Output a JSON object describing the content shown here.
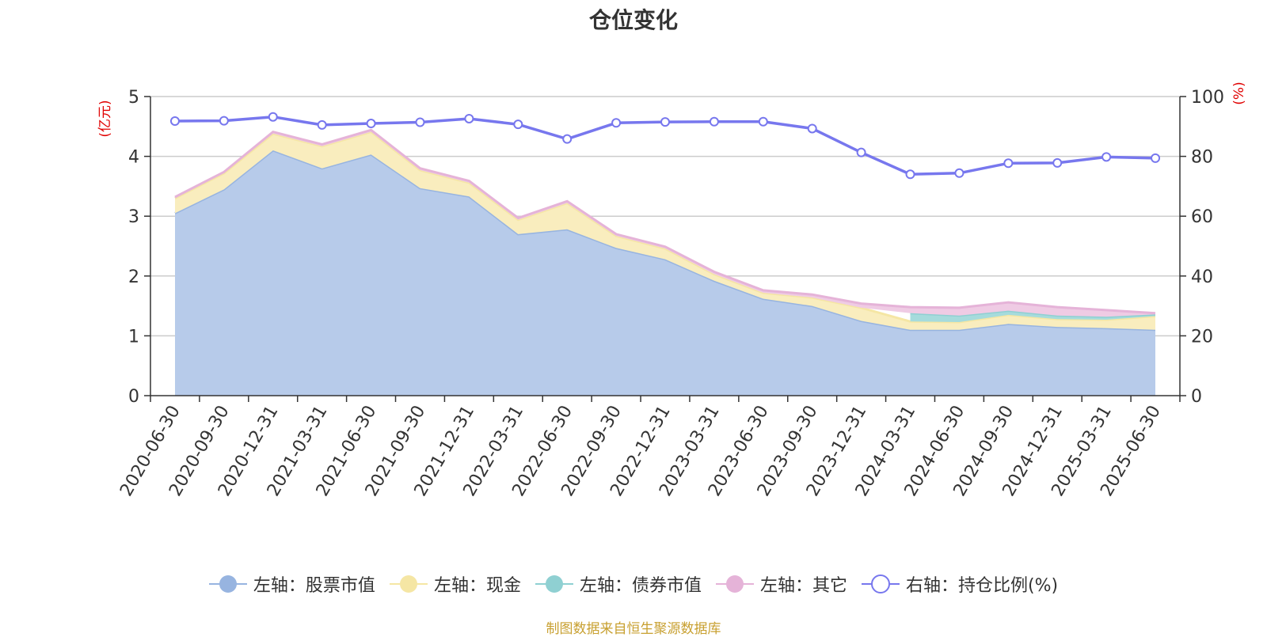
{
  "chart_data": {
    "type": "area",
    "title": "仓位变化",
    "left_axis_unit": "(亿元)",
    "right_axis_unit": "(%)",
    "left_ylim": [
      0,
      5
    ],
    "left_ticks": [
      0,
      1,
      2,
      3,
      4,
      5
    ],
    "right_ylim": [
      0,
      100
    ],
    "right_ticks": [
      0,
      20,
      40,
      60,
      80,
      100
    ],
    "grid": true,
    "legend_position": "bottom",
    "categories": [
      "2020-06-30",
      "2020-09-30",
      "2020-12-31",
      "2021-03-31",
      "2021-06-30",
      "2021-09-30",
      "2021-12-31",
      "2022-03-31",
      "2022-06-30",
      "2022-09-30",
      "2022-12-31",
      "2023-03-31",
      "2023-06-30",
      "2023-09-30",
      "2023-12-31",
      "2024-03-31",
      "2024-06-30",
      "2024-09-30",
      "2024-12-31",
      "2025-03-31",
      "2025-06-30"
    ],
    "series": [
      {
        "name": "左轴：股票市值",
        "axis": "left",
        "type": "stacked-area",
        "color": "#97b4e0",
        "fill": "#b7cbea",
        "values": [
          3.05,
          3.45,
          4.1,
          3.8,
          4.03,
          3.47,
          3.33,
          2.7,
          2.78,
          2.47,
          2.28,
          1.92,
          1.62,
          1.5,
          1.25,
          1.1,
          1.1,
          1.2,
          1.15,
          1.13,
          1.1
        ]
      },
      {
        "name": "左轴：现金",
        "axis": "left",
        "type": "stacked-area",
        "color": "#f5e6a4",
        "fill": "#f9edbe",
        "values": [
          0.25,
          0.27,
          0.28,
          0.37,
          0.38,
          0.3,
          0.23,
          0.24,
          0.44,
          0.2,
          0.18,
          0.11,
          0.1,
          0.14,
          0.22,
          0.14,
          0.13,
          0.15,
          0.13,
          0.14,
          0.23
        ]
      },
      {
        "name": "左轴：债券市值",
        "axis": "left",
        "type": "stacked-area",
        "color": "#8fd0d2",
        "fill": "#a6dbdc",
        "values": [
          0,
          0,
          0,
          0,
          0,
          0,
          0,
          0,
          0,
          0,
          0,
          0,
          0,
          0,
          0,
          0.14,
          0.11,
          0.07,
          0.06,
          0.05,
          0.03
        ]
      },
      {
        "name": "左轴：其它",
        "axis": "left",
        "type": "stacked-area",
        "color": "#e5b3d8",
        "fill": "#efcbe4",
        "values": [
          0.02,
          0.02,
          0.03,
          0.03,
          0.03,
          0.03,
          0.03,
          0.03,
          0.03,
          0.03,
          0.03,
          0.04,
          0.04,
          0.05,
          0.07,
          0.1,
          0.13,
          0.14,
          0.14,
          0.11,
          0.02
        ]
      },
      {
        "name": "右轴：持仓比例(%)",
        "axis": "right",
        "type": "line",
        "color": "#7777ee",
        "values": [
          91.8,
          91.9,
          93.2,
          90.5,
          91.0,
          91.4,
          92.6,
          90.7,
          85.8,
          91.2,
          91.5,
          91.6,
          91.6,
          89.3,
          81.3,
          74.0,
          74.4,
          77.7,
          77.8,
          79.8,
          79.4
        ]
      }
    ]
  },
  "source": "制图数据来自恒生聚源数据库"
}
